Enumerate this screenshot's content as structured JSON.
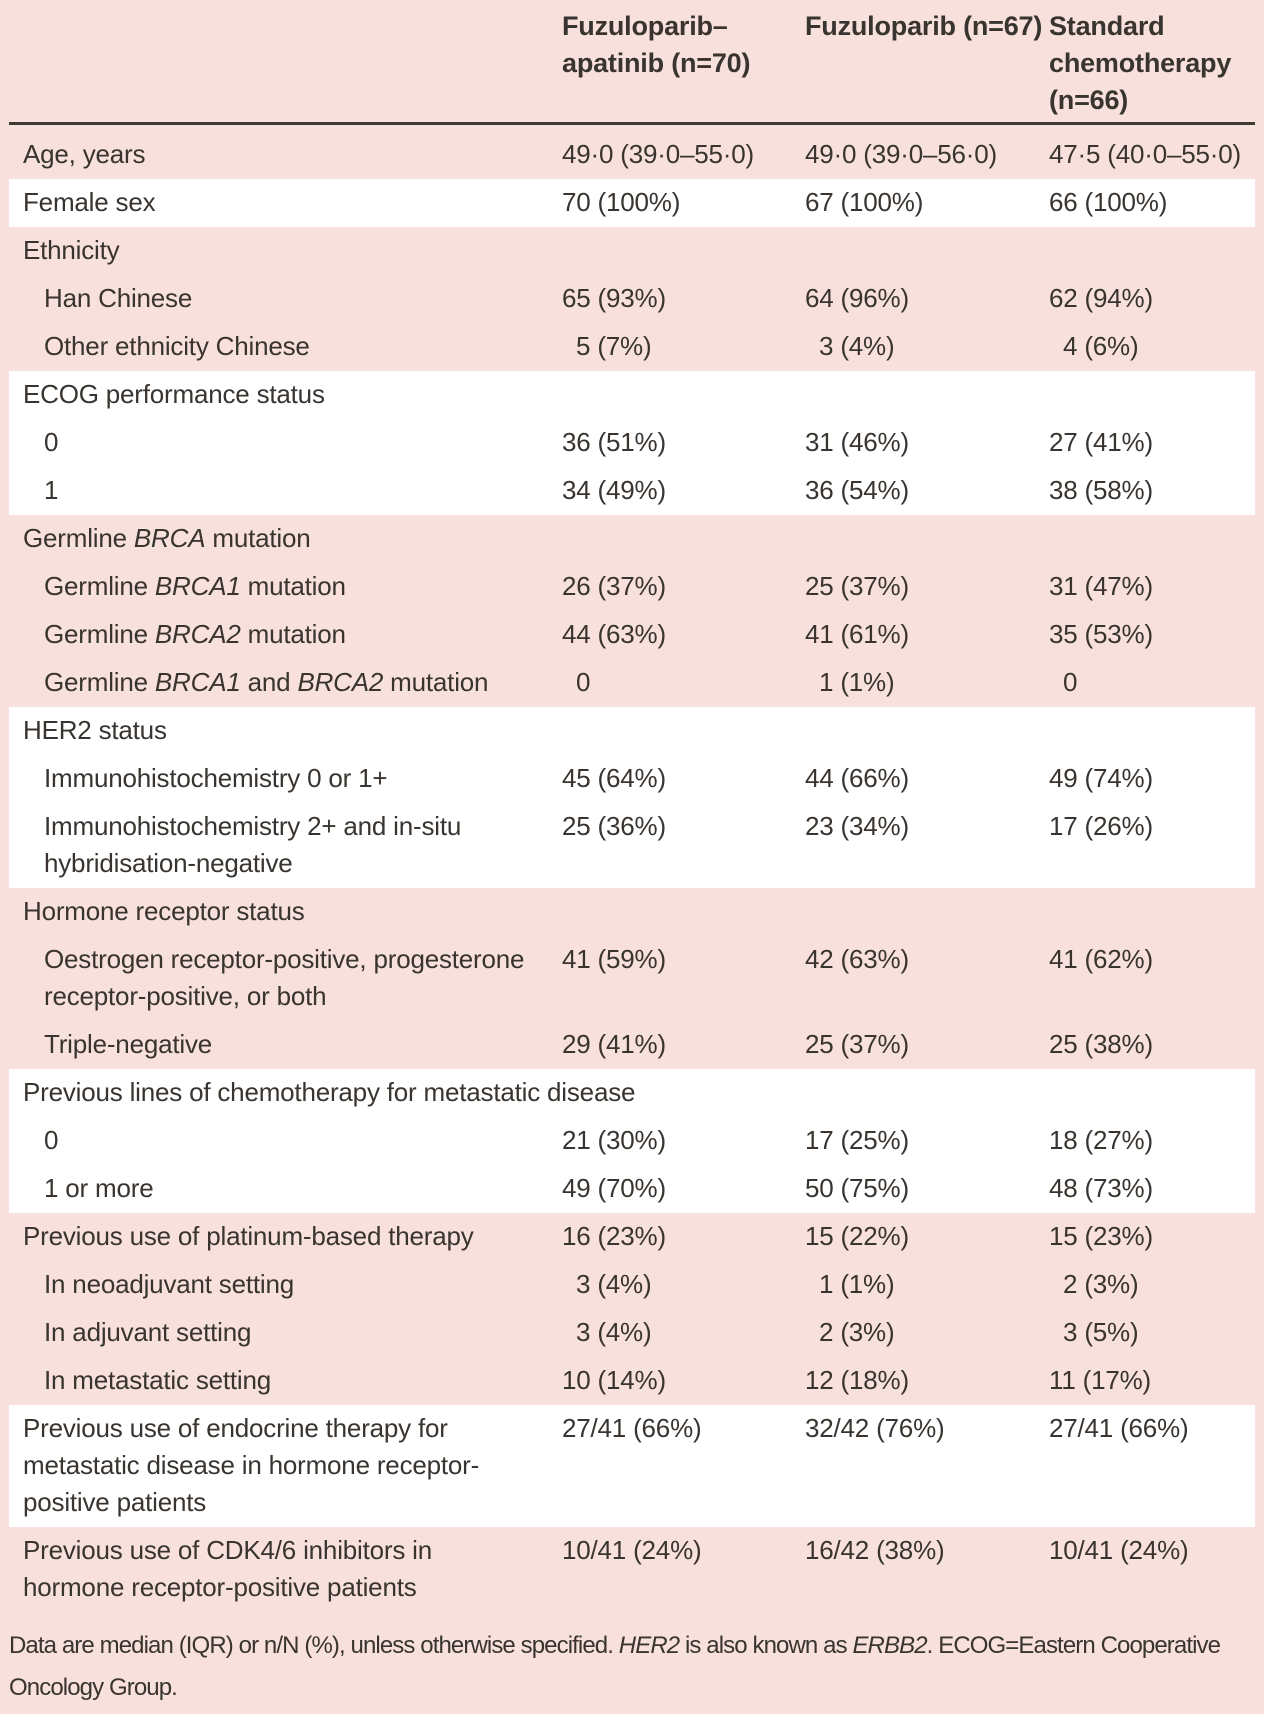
{
  "colors": {
    "row_pink": "#f8e1dc",
    "row_white": "#ffffff",
    "text": "#39342f",
    "header_rule": "#3e3a36"
  },
  "table": {
    "columns": [
      "",
      "Fuzuloparib–\napatinib (n=70)",
      "Fuzuloparib (n=67)",
      "Standard\nchemotherapy\n(n=66)"
    ],
    "rows": [
      {
        "label": "Age, years",
        "indent": 0,
        "bg": "pink",
        "lines": 1,
        "values": [
          "49·0 (39·0–55·0)",
          "49·0 (39·0–56·0)",
          "47·5 (40·0–55·0)"
        ]
      },
      {
        "label": "Female sex",
        "indent": 0,
        "bg": "white",
        "lines": 1,
        "values": [
          "70 (100%)",
          "67 (100%)",
          "66 (100%)"
        ]
      },
      {
        "label": "Ethnicity",
        "indent": 0,
        "bg": "pink",
        "lines": 1,
        "values": [
          "",
          "",
          ""
        ]
      },
      {
        "label": "Han Chinese",
        "indent": 1,
        "bg": "pink",
        "lines": 1,
        "values": [
          "65 (93%)",
          "64 (96%)",
          "62 (94%)"
        ]
      },
      {
        "label": "Other ethnicity Chinese",
        "indent": 1,
        "bg": "pink",
        "lines": 1,
        "values": [
          "5 (7%)",
          "3 (4%)",
          "4 (6%)"
        ]
      },
      {
        "label": "ECOG performance status",
        "indent": 0,
        "bg": "white",
        "lines": 1,
        "values": [
          "",
          "",
          ""
        ]
      },
      {
        "label": "0",
        "indent": 1,
        "bg": "white",
        "lines": 1,
        "values": [
          "36 (51%)",
          "31 (46%)",
          "27 (41%)"
        ]
      },
      {
        "label": "1",
        "indent": 1,
        "bg": "white",
        "lines": 1,
        "values": [
          "34 (49%)",
          "36 (54%)",
          "38 (58%)"
        ]
      },
      {
        "label": [
          {
            "t": "Germline "
          },
          {
            "t": "BRCA",
            "i": true
          },
          {
            "t": " mutation"
          }
        ],
        "indent": 0,
        "bg": "pink",
        "lines": 1,
        "values": [
          "",
          "",
          ""
        ]
      },
      {
        "label": [
          {
            "t": "Germline "
          },
          {
            "t": "BRCA1",
            "i": true
          },
          {
            "t": " mutation"
          }
        ],
        "indent": 1,
        "bg": "pink",
        "lines": 1,
        "values": [
          "26 (37%)",
          "25 (37%)",
          "31 (47%)"
        ]
      },
      {
        "label": [
          {
            "t": "Germline "
          },
          {
            "t": "BRCA2",
            "i": true
          },
          {
            "t": " mutation"
          }
        ],
        "indent": 1,
        "bg": "pink",
        "lines": 1,
        "values": [
          "44 (63%)",
          "41 (61%)",
          "35 (53%)"
        ]
      },
      {
        "label": [
          {
            "t": "Germline "
          },
          {
            "t": "BRCA1",
            "i": true
          },
          {
            "t": " and "
          },
          {
            "t": "BRCA2",
            "i": true
          },
          {
            "t": " mutation"
          }
        ],
        "indent": 1,
        "bg": "pink",
        "lines": 1,
        "values": [
          "0",
          "1 (1%)",
          "0"
        ]
      },
      {
        "label": "HER2 status",
        "indent": 0,
        "bg": "white",
        "lines": 1,
        "values": [
          "",
          "",
          ""
        ]
      },
      {
        "label": "Immunohistochemistry 0 or 1+",
        "indent": 1,
        "bg": "white",
        "lines": 1,
        "values": [
          "45 (64%)",
          "44 (66%)",
          "49 (74%)"
        ]
      },
      {
        "label": "Immunohistochemistry 2+ and in-situ\nhybridisation-negative",
        "indent": 1,
        "bg": "white",
        "lines": 2,
        "values": [
          "25 (36%)",
          "23 (34%)",
          "17 (26%)"
        ]
      },
      {
        "label": "Hormone receptor status",
        "indent": 0,
        "bg": "pink",
        "lines": 1,
        "values": [
          "",
          "",
          ""
        ]
      },
      {
        "label": "Oestrogen receptor-positive, progesterone\nreceptor-positive, or both",
        "indent": 1,
        "bg": "pink",
        "lines": 2,
        "values": [
          "41 (59%)",
          "42 (63%)",
          "41 (62%)"
        ]
      },
      {
        "label": "Triple-negative",
        "indent": 1,
        "bg": "pink",
        "lines": 1,
        "values": [
          "29 (41%)",
          "25 (37%)",
          "25 (38%)"
        ]
      },
      {
        "label": "Previous lines of chemotherapy for metastatic disease",
        "indent": 0,
        "bg": "white",
        "lines": 1,
        "values": [
          "",
          "",
          ""
        ]
      },
      {
        "label": "0",
        "indent": 1,
        "bg": "white",
        "lines": 1,
        "values": [
          "21 (30%)",
          "17 (25%)",
          "18 (27%)"
        ]
      },
      {
        "label": "1 or more",
        "indent": 1,
        "bg": "white",
        "lines": 1,
        "values": [
          "49 (70%)",
          "50 (75%)",
          "48 (73%)"
        ]
      },
      {
        "label": "Previous use of platinum-based therapy",
        "indent": 0,
        "bg": "pink",
        "lines": 1,
        "values": [
          "16 (23%)",
          "15 (22%)",
          "15 (23%)"
        ]
      },
      {
        "label": "In neoadjuvant setting",
        "indent": 1,
        "bg": "pink",
        "lines": 1,
        "values": [
          "3 (4%)",
          "1 (1%)",
          "2 (3%)"
        ]
      },
      {
        "label": "In adjuvant setting",
        "indent": 1,
        "bg": "pink",
        "lines": 1,
        "values": [
          "3 (4%)",
          "2 (3%)",
          "3 (5%)"
        ]
      },
      {
        "label": "In metastatic setting",
        "indent": 1,
        "bg": "pink",
        "lines": 1,
        "values": [
          "10 (14%)",
          "12 (18%)",
          "11 (17%)"
        ]
      },
      {
        "label": "Previous use of endocrine therapy for\nmetastatic disease in hormone receptor-\npositive patients",
        "indent": 0,
        "bg": "white",
        "lines": 3,
        "values": [
          "27/41 (66%)",
          "32/42 (76%)",
          "27/41 (66%)"
        ]
      },
      {
        "label": "Previous use of CDK4/6 inhibitors in\nhormone receptor-positive patients",
        "indent": 0,
        "bg": "pink",
        "lines": 2,
        "values": [
          "10/41 (24%)",
          "16/42 (38%)",
          "10/41 (24%)"
        ]
      }
    ],
    "footnote": [
      {
        "t": "Data are median (IQR) or n/N (%), unless otherwise specified. "
      },
      {
        "t": "HER2",
        "i": true
      },
      {
        "t": " is also known as "
      },
      {
        "t": "ERBB2",
        "i": true
      },
      {
        "t": ". ECOG=Eastern Cooperative\nOncology Group."
      }
    ]
  }
}
